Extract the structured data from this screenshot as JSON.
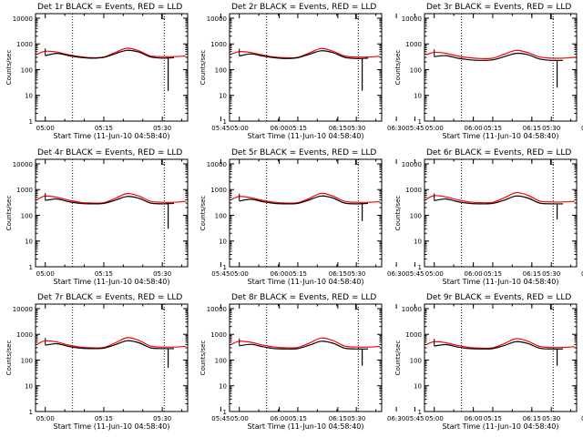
{
  "page": {
    "ylabel": "Counts/sec",
    "xlabel": "Start Time (11-Jun-10 04:58:40)",
    "xticks": [
      "05:00",
      "05:15",
      "05:30",
      "05:45",
      "06:00",
      "06:15",
      "06:30"
    ],
    "yticks": [
      "1",
      "10",
      "100",
      "1000",
      "10000"
    ],
    "corner_marker": "L"
  },
  "chart_data": [
    {
      "type": "line",
      "title": "Det 1r BLACK = Events, RED = LLD",
      "xlabel": "Start Time (11-Jun-10 04:58:40)",
      "ylabel": "Counts/sec",
      "x_unit": "minutes after 05:00",
      "xlim": [
        -2.5,
        36.5
      ],
      "ylim": [
        1,
        15000
      ],
      "y_scale": "log",
      "vlines": [
        7,
        30.5
      ],
      "x": [
        -2,
        0,
        3,
        6,
        9,
        12,
        15,
        18,
        21,
        24,
        27,
        30,
        33,
        36
      ],
      "series": [
        {
          "name": "LLD",
          "color": "#ff0000",
          "values": [
            400,
            520,
            480,
            380,
            320,
            290,
            310,
            470,
            680,
            540,
            340,
            320,
            320,
            340
          ]
        },
        {
          "name": "Events",
          "color": "#000000",
          "values": [
            null,
            350,
            430,
            350,
            300,
            280,
            300,
            420,
            560,
            480,
            310,
            280,
            290,
            null
          ]
        }
      ],
      "drop": {
        "x": 31.5,
        "value": 15
      }
    },
    {
      "type": "line",
      "title": "Det 2r BLACK = Events, RED = LLD",
      "xlabel": "Start Time (11-Jun-10 04:58:40)",
      "ylabel": "Counts/sec",
      "x_unit": "minutes after 05:00",
      "xlim": [
        -2.5,
        36.5
      ],
      "ylim": [
        1,
        15000
      ],
      "y_scale": "log",
      "vlines": [
        7,
        30.5
      ],
      "x": [
        -2,
        0,
        3,
        6,
        9,
        12,
        15,
        18,
        21,
        24,
        27,
        30,
        33,
        36
      ],
      "series": [
        {
          "name": "LLD",
          "color": "#ff0000",
          "values": [
            400,
            500,
            460,
            370,
            310,
            290,
            300,
            450,
            660,
            520,
            340,
            310,
            310,
            330
          ]
        },
        {
          "name": "Events",
          "color": "#000000",
          "values": [
            null,
            340,
            410,
            340,
            290,
            270,
            290,
            400,
            540,
            460,
            300,
            270,
            280,
            null
          ]
        }
      ],
      "drop": {
        "x": 31.5,
        "value": 15
      }
    },
    {
      "type": "line",
      "title": "Det 3r BLACK = Events, RED = LLD",
      "xlabel": "Start Time (11-Jun-10 04:58:40)",
      "ylabel": "Counts/sec",
      "x_unit": "minutes after 05:00",
      "xlim": [
        -2.5,
        36.5
      ],
      "ylim": [
        1,
        15000
      ],
      "y_scale": "log",
      "vlines": [
        7,
        30.5
      ],
      "x": [
        -2,
        0,
        3,
        6,
        9,
        12,
        15,
        18,
        21,
        24,
        27,
        30,
        33,
        36
      ],
      "series": [
        {
          "name": "LLD",
          "color": "#ff0000",
          "values": [
            380,
            470,
            430,
            340,
            290,
            270,
            280,
            400,
            560,
            460,
            310,
            280,
            280,
            300
          ]
        },
        {
          "name": "Events",
          "color": "#000000",
          "values": [
            null,
            320,
            350,
            280,
            240,
            230,
            240,
            320,
            430,
            380,
            260,
            230,
            230,
            null
          ]
        }
      ],
      "drop": {
        "x": 31.5,
        "value": 20
      }
    },
    {
      "type": "line",
      "title": "Det 4r BLACK = Events, RED = LLD",
      "xlabel": "Start Time (11-Jun-10 04:58:40)",
      "ylabel": "Counts/sec",
      "x_unit": "minutes after 05:00",
      "xlim": [
        -2.5,
        36.5
      ],
      "ylim": [
        1,
        15000
      ],
      "y_scale": "log",
      "vlines": [
        7,
        30.5
      ],
      "x": [
        -2,
        0,
        3,
        6,
        9,
        12,
        15,
        18,
        21,
        24,
        27,
        30,
        33,
        36
      ],
      "series": [
        {
          "name": "LLD",
          "color": "#ff0000",
          "values": [
            420,
            560,
            500,
            390,
            320,
            300,
            310,
            460,
            700,
            560,
            350,
            320,
            320,
            350
          ]
        },
        {
          "name": "Events",
          "color": "#000000",
          "values": [
            null,
            380,
            430,
            340,
            290,
            280,
            290,
            390,
            540,
            460,
            300,
            280,
            290,
            null
          ]
        }
      ],
      "drop": {
        "x": 31.5,
        "value": 30
      }
    },
    {
      "type": "line",
      "title": "Det 5r BLACK = Events, RED = LLD",
      "xlabel": "Start Time (11-Jun-10 04:58:40)",
      "ylabel": "Counts/sec",
      "x_unit": "minutes after 05:00",
      "xlim": [
        -2.5,
        36.5
      ],
      "ylim": [
        1,
        15000
      ],
      "y_scale": "log",
      "vlines": [
        7,
        30.5
      ],
      "x": [
        -2,
        0,
        3,
        6,
        9,
        12,
        15,
        18,
        21,
        24,
        27,
        30,
        33,
        36
      ],
      "series": [
        {
          "name": "LLD",
          "color": "#ff0000",
          "values": [
            410,
            540,
            480,
            380,
            320,
            300,
            310,
            460,
            720,
            560,
            350,
            320,
            320,
            340
          ]
        },
        {
          "name": "Events",
          "color": "#000000",
          "values": [
            null,
            360,
            420,
            340,
            290,
            280,
            290,
            400,
            560,
            470,
            300,
            280,
            290,
            null
          ]
        }
      ],
      "drop": {
        "x": 31.5,
        "value": 60
      }
    },
    {
      "type": "line",
      "title": "Det 6r BLACK = Events, RED = LLD",
      "xlabel": "Start Time (11-Jun-10 04:58:40)",
      "ylabel": "Counts/sec",
      "x_unit": "minutes after 05:00",
      "xlim": [
        -2.5,
        36.5
      ],
      "ylim": [
        1,
        15000
      ],
      "y_scale": "log",
      "vlines": [
        7,
        30.5
      ],
      "x": [
        -2,
        0,
        3,
        6,
        9,
        12,
        15,
        18,
        21,
        24,
        27,
        30,
        33,
        36
      ],
      "series": [
        {
          "name": "LLD",
          "color": "#ff0000",
          "values": [
            430,
            580,
            520,
            400,
            330,
            310,
            320,
            480,
            760,
            600,
            360,
            330,
            330,
            350
          ]
        },
        {
          "name": "Events",
          "color": "#000000",
          "values": [
            null,
            370,
            430,
            340,
            290,
            280,
            290,
            390,
            560,
            470,
            300,
            280,
            280,
            null
          ]
        }
      ],
      "drop": {
        "x": 31.5,
        "value": 70
      }
    },
    {
      "type": "line",
      "title": "Det 7r BLACK = Events, RED = LLD",
      "xlabel": "Start Time (11-Jun-10 04:58:40)",
      "ylabel": "Counts/sec",
      "x_unit": "minutes after 05:00",
      "xlim": [
        -2.5,
        36.5
      ],
      "ylim": [
        1,
        15000
      ],
      "y_scale": "log",
      "vlines": [
        7,
        30.5
      ],
      "x": [
        -2,
        0,
        3,
        6,
        9,
        12,
        15,
        18,
        21,
        24,
        27,
        30,
        33,
        36
      ],
      "series": [
        {
          "name": "LLD",
          "color": "#ff0000",
          "values": [
            420,
            560,
            500,
            380,
            320,
            300,
            310,
            470,
            740,
            580,
            350,
            320,
            320,
            340
          ]
        },
        {
          "name": "Events",
          "color": "#000000",
          "values": [
            null,
            380,
            430,
            340,
            290,
            280,
            290,
            400,
            560,
            470,
            300,
            280,
            280,
            null
          ]
        }
      ],
      "drop": {
        "x": 31.5,
        "value": 50
      }
    },
    {
      "type": "line",
      "title": "Det 8r BLACK = Events, RED = LLD",
      "xlabel": "Start Time (11-Jun-10 04:58:40)",
      "ylabel": "Counts/sec",
      "x_unit": "minutes after 05:00",
      "xlim": [
        -2.5,
        36.5
      ],
      "ylim": [
        1,
        15000
      ],
      "y_scale": "log",
      "vlines": [
        7,
        30.5
      ],
      "x": [
        -2,
        0,
        3,
        6,
        9,
        12,
        15,
        18,
        21,
        24,
        27,
        30,
        33,
        36
      ],
      "series": [
        {
          "name": "LLD",
          "color": "#ff0000",
          "values": [
            410,
            540,
            490,
            380,
            320,
            300,
            310,
            460,
            720,
            570,
            350,
            320,
            320,
            340
          ]
        },
        {
          "name": "Events",
          "color": "#000000",
          "values": [
            null,
            360,
            410,
            330,
            280,
            270,
            280,
            380,
            540,
            450,
            290,
            270,
            270,
            null
          ]
        }
      ],
      "drop": {
        "x": 31.5,
        "value": 60
      }
    },
    {
      "type": "line",
      "title": "Det 9r BLACK = Events, RED = LLD",
      "xlabel": "Start Time (11-Jun-10 04:58:40)",
      "ylabel": "Counts/sec",
      "x_unit": "minutes after 05:00",
      "xlim": [
        -2.5,
        36.5
      ],
      "ylim": [
        1,
        15000
      ],
      "y_scale": "log",
      "vlines": [
        7,
        30.5
      ],
      "x": [
        -2,
        0,
        3,
        6,
        9,
        12,
        15,
        18,
        21,
        24,
        27,
        30,
        33,
        36
      ],
      "series": [
        {
          "name": "LLD",
          "color": "#ff0000",
          "values": [
            400,
            520,
            470,
            370,
            310,
            290,
            300,
            440,
            680,
            540,
            340,
            310,
            310,
            330
          ]
        },
        {
          "name": "Events",
          "color": "#000000",
          "values": [
            null,
            350,
            400,
            320,
            280,
            270,
            280,
            370,
            520,
            440,
            290,
            270,
            270,
            null
          ]
        }
      ],
      "drop": {
        "x": 31.5,
        "value": 60
      }
    }
  ]
}
